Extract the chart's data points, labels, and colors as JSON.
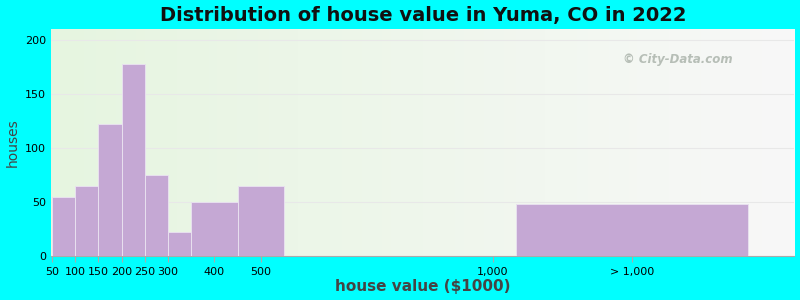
{
  "title": "Distribution of house value in Yuma, CO in 2022",
  "xlabel": "house value ($1000)",
  "ylabel": "houses",
  "bar_labels": [
    "50",
    "100",
    "150",
    "200",
    "250",
    "300",
    "400",
    "500",
    "1,000",
    "> 1,000"
  ],
  "bar_values": [
    55,
    65,
    122,
    178,
    75,
    22,
    50,
    65,
    0,
    48
  ],
  "bar_color": "#c5a8d4",
  "bar_edge_color": "#e8e0ef",
  "ylim": [
    0,
    210
  ],
  "yticks": [
    0,
    50,
    100,
    150,
    200
  ],
  "bg_color_left": "#e6f5e0",
  "bg_color_right": "#f8f8f8",
  "outer_background": "#00ffff",
  "title_fontsize": 14,
  "axis_label_fontsize": 10,
  "tick_fontsize": 8,
  "grid_color": "#f0f0f0",
  "watermark_text": "City-Data.com",
  "bar_lefts": [
    50,
    100,
    150,
    200,
    250,
    300,
    350,
    450,
    550,
    1050
  ],
  "bar_widths": [
    50,
    50,
    50,
    50,
    50,
    50,
    100,
    100,
    1,
    500
  ],
  "xlim": [
    48,
    1650
  ],
  "xtick_positions": [
    50,
    100,
    150,
    200,
    250,
    300,
    400,
    500,
    1000,
    1300
  ],
  "xtick_labels": [
    "50",
    "100",
    "150",
    "200",
    "250",
    "300",
    "400",
    "500",
    "1,000",
    "> 1,000"
  ]
}
